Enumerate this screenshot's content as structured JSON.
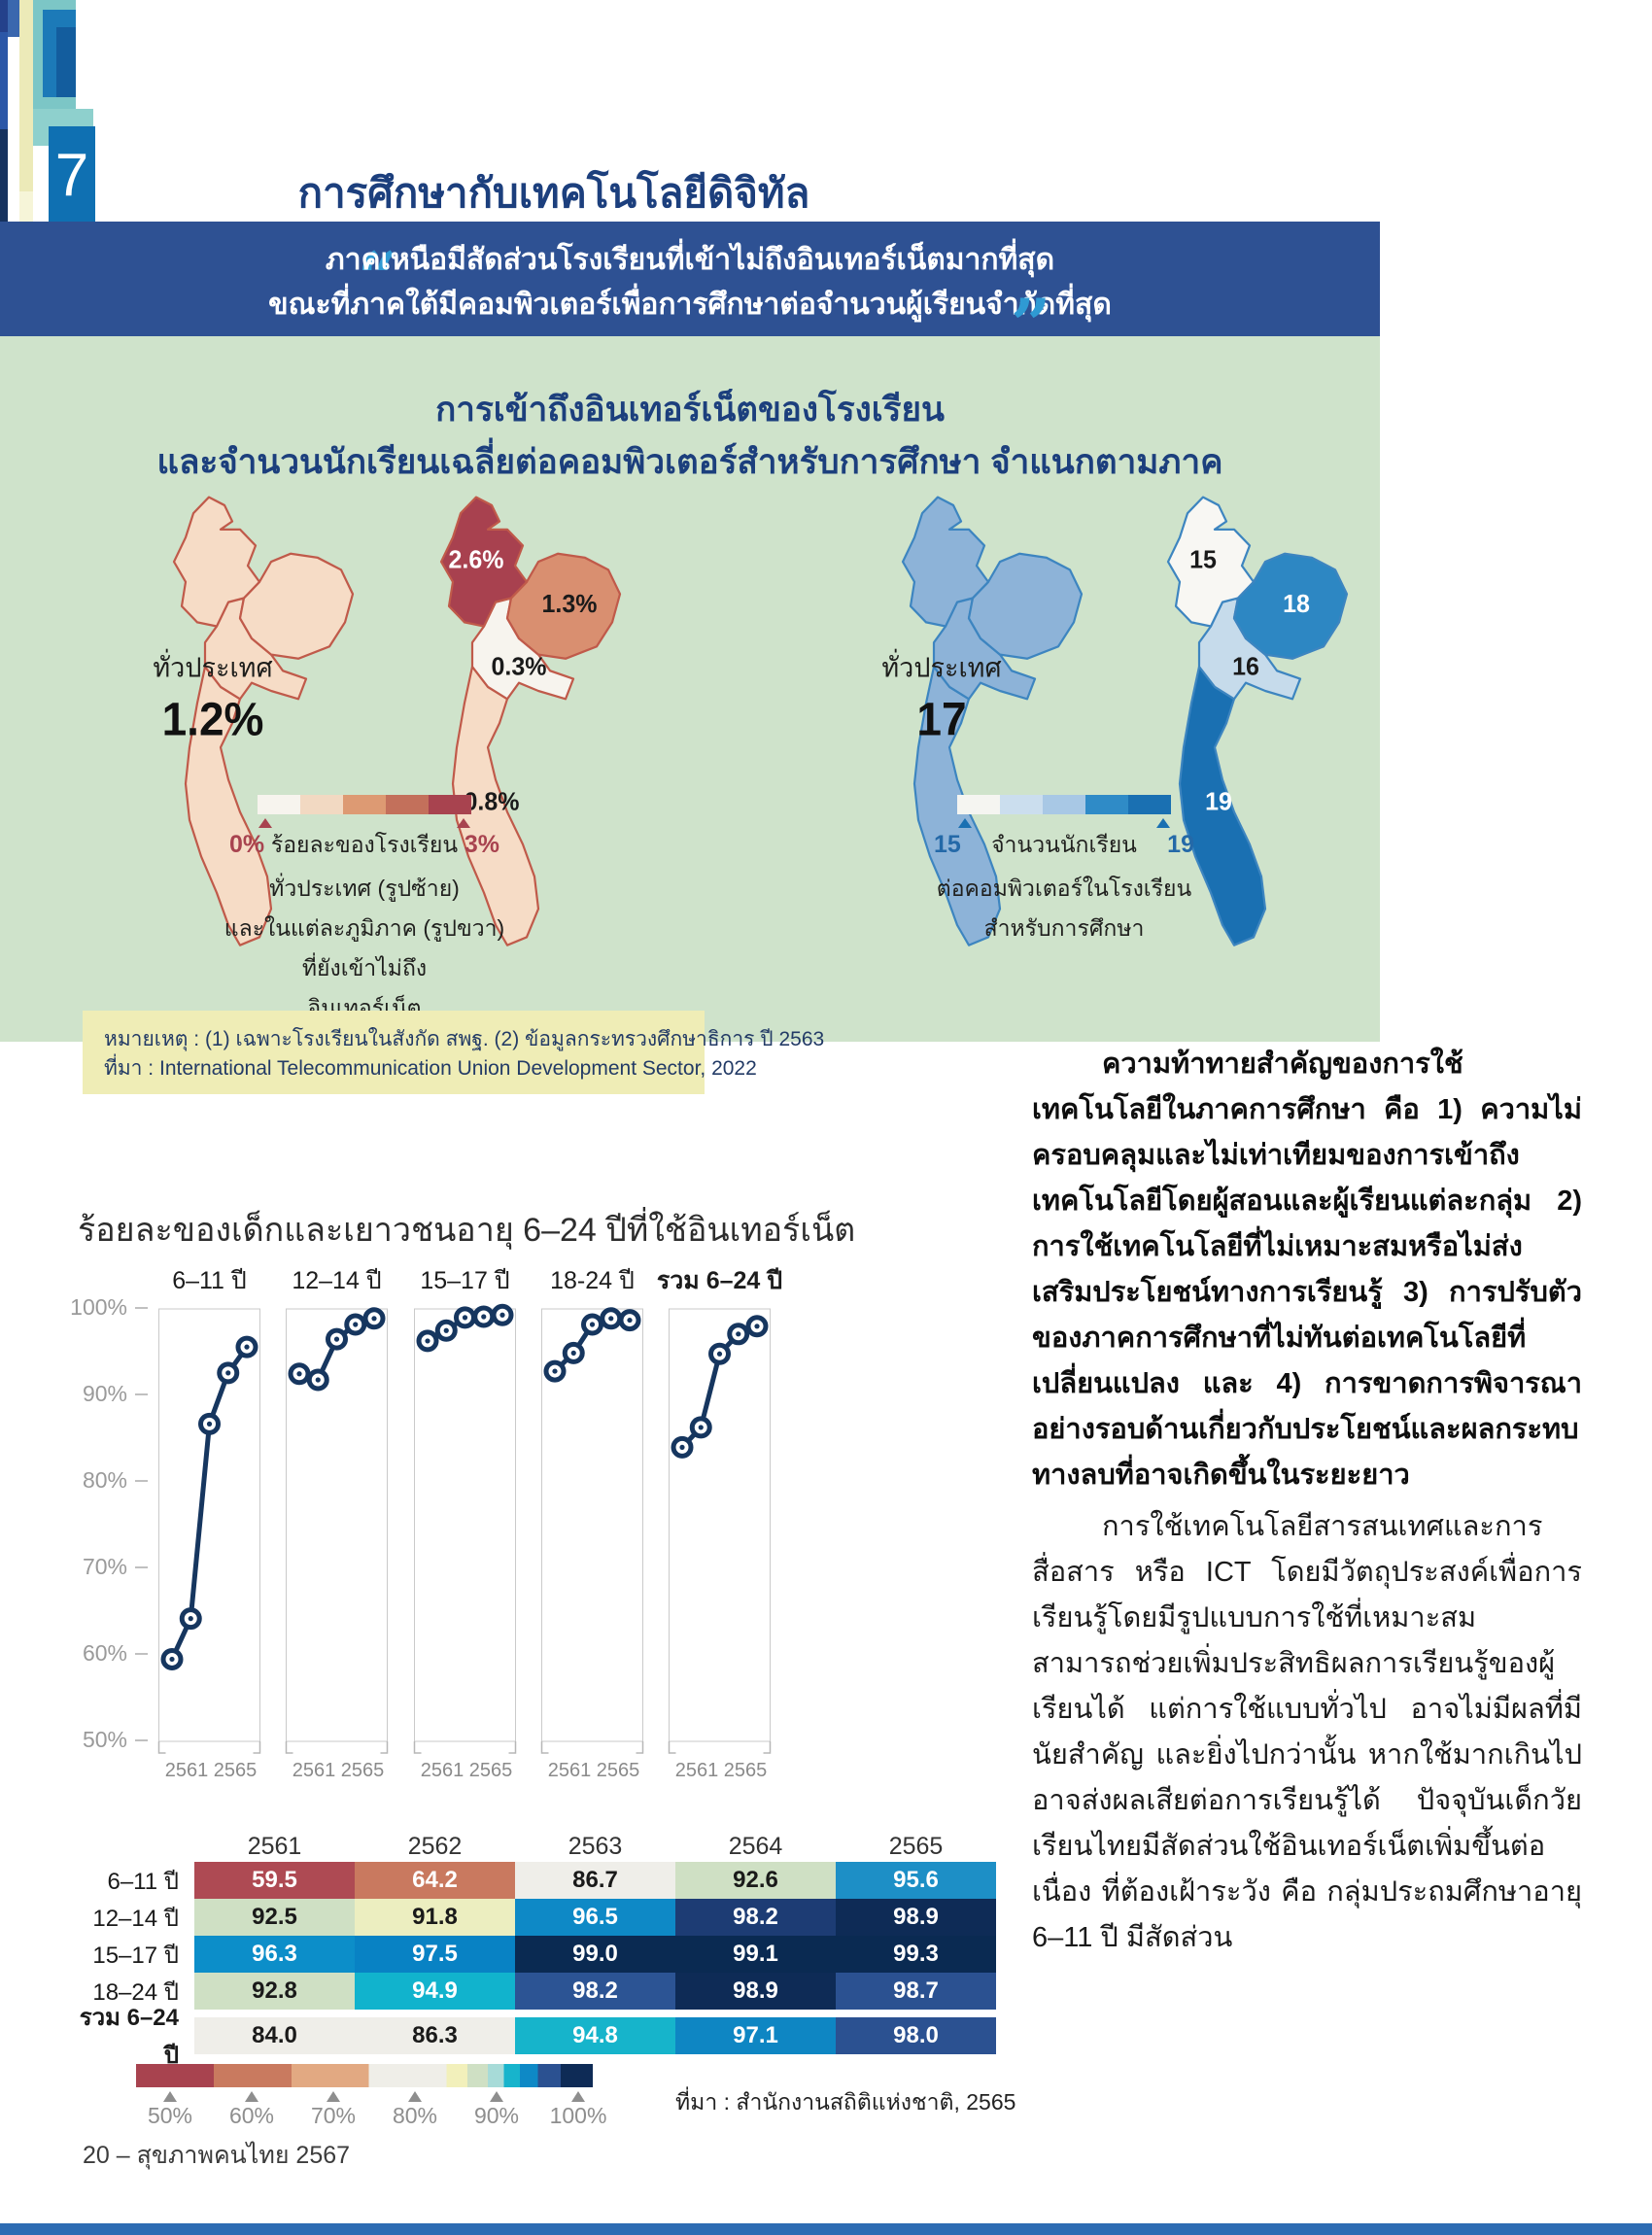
{
  "page": {
    "chapter_number": "7",
    "title": "การศึกษากับเทคโนโลยีดิจิทัล",
    "footer": "20 – สุขภาพคนไทย 2567",
    "accent_navy": "#1c3f7d",
    "banner_blue": "#2e5193",
    "panel_green": "#cfe3cb",
    "note_yellow": "#efedb6",
    "bottom_bar_blue": "#2d6cb3"
  },
  "quote": {
    "open_mark": "“",
    "close_mark": "”",
    "mark_color": "#2f9ad3",
    "line1": "ภาคเหนือมีสัดส่วนโรงเรียนที่เข้าไม่ถึงอินเทอร์เน็ตมากที่สุด",
    "line2": "ขณะที่ภาคใต้มีคอมพิวเตอร์เพื่อการศึกษาต่อจำนวนผู้เรียนจำกัดที่สุด"
  },
  "map_section": {
    "title_line1": "การเข้าถึงอินเทอร์เน็ตของโรงเรียน",
    "title_line2": "และจำนวนนักเรียนเฉลี่ยต่อคอมพิวเตอร์สำหรับการศึกษา จำแนกตามภาค",
    "internet_maps": {
      "national_label": "ทั่วประเทศ",
      "national_value": "1.2%",
      "map_fill": "#f6dcc6",
      "map_stroke": "#c05a4a",
      "region_values": {
        "north": "2.6%",
        "northeast": "1.3%",
        "central": "0.3%",
        "south": "0.8%"
      },
      "region_fills": {
        "north": "#a8414f",
        "northeast": "#d98f70",
        "central": "#f7f4ee",
        "south": "#f6dcc6"
      },
      "region_text_colors": {
        "north": "#ffffff",
        "northeast": "#1a1a1a",
        "central": "#1a1a1a",
        "south": "#1a1a1a"
      },
      "legend": {
        "segments": [
          "#f7f4ee",
          "#f2d9c2",
          "#dd9a73",
          "#c3705b",
          "#a8434f"
        ],
        "min_label": "0%",
        "max_label": "3%",
        "accent": "#a8434f",
        "caption_inline": "ร้อยละของโรงเรียน",
        "caption_lines": [
          "ทั่วประเทศ (รูปซ้าย)",
          "และในแต่ละภูมิภาค (รูปขวา)",
          "ที่ยังเข้าไม่ถึง",
          "อินเทอร์เน็ต"
        ]
      }
    },
    "computer_maps": {
      "national_label": "ทั่วประเทศ",
      "national_value": "17",
      "map_fill": "#8db3d8",
      "map_stroke": "#3d85c0",
      "region_values": {
        "north": "15",
        "northeast": "18",
        "central": "16",
        "south": "19"
      },
      "region_fills": {
        "north": "#f8f7f3",
        "northeast": "#2d87c3",
        "central": "#c6dbeb",
        "south": "#1a70b2"
      },
      "region_text_colors": {
        "north": "#1a1a1a",
        "northeast": "#ffffff",
        "central": "#1a1a1a",
        "south": "#ffffff"
      },
      "legend": {
        "segments": [
          "#f5f5f1",
          "#cbdeee",
          "#a8c8e5",
          "#2f8bc7",
          "#1a70b2"
        ],
        "min_label": "15",
        "max_label": "19",
        "accent": "#1a70b2",
        "caption_inline": "จำนวนนักเรียน",
        "caption_lines": [
          "ต่อคอมพิวเตอร์ในโรงเรียน",
          "สำหรับการศึกษา"
        ]
      }
    }
  },
  "note_box": {
    "line1": "หมายเหตุ : (1) เฉพาะโรงเรียนในสังกัด สพฐ. (2) ข้อมูลกระทรวงศึกษาธิการ ปี 2563",
    "line2": "ที่มา : International Telecommunication Union Development Sector, 2022"
  },
  "chart_data": {
    "type": "line",
    "title": "ร้อยละของเด็กและเยาวชนอายุ 6–24 ปีที่ใช้อินเทอร์เน็ต",
    "x": [
      "2561",
      "2562",
      "2563",
      "2564",
      "2565"
    ],
    "x_edge_labels": [
      "2561",
      "2565"
    ],
    "ylim": [
      50,
      100
    ],
    "ytick_labels": [
      "100%",
      "90%",
      "80%",
      "70%",
      "60%",
      "50%"
    ],
    "grid": false,
    "line_color": "#16365f",
    "series": [
      {
        "name": "6–11 ปี",
        "table_label": "6–11 ปี",
        "values": [
          59.5,
          64.2,
          86.7,
          92.6,
          95.6
        ]
      },
      {
        "name": "12–14 ปี",
        "table_label": "12–14 ปี",
        "values": [
          92.5,
          91.8,
          96.5,
          98.2,
          98.9
        ]
      },
      {
        "name": "15–17 ปี",
        "table_label": "15–17 ปี",
        "values": [
          96.3,
          97.5,
          99.0,
          99.1,
          99.3
        ]
      },
      {
        "name": "18-24 ปี",
        "table_label": "18–24 ปี",
        "values": [
          92.8,
          94.9,
          98.2,
          98.9,
          98.7
        ]
      },
      {
        "name": "รวม 6–24 ปี",
        "table_label": "รวม 6–24 ปี",
        "values": [
          84.0,
          86.3,
          94.8,
          97.1,
          98.0
        ],
        "bold": true
      }
    ],
    "table_cell_styles": [
      [
        {
          "bg": "#ae4a53",
          "fg": "#ffffff"
        },
        {
          "bg": "#c9795f",
          "fg": "#ffffff"
        },
        {
          "bg": "#efeee9",
          "fg": "#1a1a1a"
        },
        {
          "bg": "#cfe0c4",
          "fg": "#1a1a1a"
        },
        {
          "bg": "#1d8fc6",
          "fg": "#ffffff"
        }
      ],
      [
        {
          "bg": "#cfe0c4",
          "fg": "#1a1a1a"
        },
        {
          "bg": "#eceec0",
          "fg": "#1a1a1a"
        },
        {
          "bg": "#0e89c6",
          "fg": "#ffffff"
        },
        {
          "bg": "#1d3c74",
          "fg": "#ffffff"
        },
        {
          "bg": "#0e2b56",
          "fg": "#ffffff"
        }
      ],
      [
        {
          "bg": "#0c8ec9",
          "fg": "#ffffff"
        },
        {
          "bg": "#0882c4",
          "fg": "#ffffff"
        },
        {
          "bg": "#0a2a52",
          "fg": "#ffffff"
        },
        {
          "bg": "#0a2a52",
          "fg": "#ffffff"
        },
        {
          "bg": "#0a2a52",
          "fg": "#ffffff"
        }
      ],
      [
        {
          "bg": "#cfe0c4",
          "fg": "#1a1a1a"
        },
        {
          "bg": "#11b3cd",
          "fg": "#ffffff"
        },
        {
          "bg": "#2c5494",
          "fg": "#ffffff"
        },
        {
          "bg": "#0e2b56",
          "fg": "#ffffff"
        },
        {
          "bg": "#2b5191",
          "fg": "#ffffff"
        }
      ],
      [
        {
          "bg": "#efeee9",
          "fg": "#1a1a1a"
        },
        {
          "bg": "#efeee9",
          "fg": "#1a1a1a"
        },
        {
          "bg": "#16b4cb",
          "fg": "#ffffff"
        },
        {
          "bg": "#0e86c3",
          "fg": "#ffffff"
        },
        {
          "bg": "#2b5191",
          "fg": "#ffffff"
        }
      ]
    ],
    "legend": {
      "tick_labels": [
        "50%",
        "60%",
        "70%",
        "80%",
        "90%",
        "100%"
      ],
      "gradient_segments": [
        {
          "c": "#a8434f",
          "w": 17
        },
        {
          "c": "#c97a5f",
          "w": 17
        },
        {
          "c": "#e2a982",
          "w": 17
        },
        {
          "c": "#efeee8",
          "w": 17
        },
        {
          "c": "#f2f0bb",
          "w": 4.5
        },
        {
          "c": "#cfe0c4",
          "w": 4.5
        },
        {
          "c": "#a7dbd8",
          "w": 3.5
        },
        {
          "c": "#17b4cc",
          "w": 3.5
        },
        {
          "c": "#0e89c6",
          "w": 4
        },
        {
          "c": "#2b5191",
          "w": 5
        },
        {
          "c": "#0e2b56",
          "w": 7
        }
      ]
    },
    "source": "ที่มา : สำนักงานสถิติแห่งชาติ, 2565"
  },
  "article": {
    "bold_paragraph": "ความท้าทายสำคัญของการใช้เทคโนโลยีในภาคการศึกษา คือ 1) ความไม่ครอบคลุมและไม่เท่าเทียมของการเข้าถึงเทคโนโลยีโดยผู้สอนและผู้เรียนแต่ละกลุ่ม 2) การใช้เทคโนโลยีที่ไม่เหมาะสมหรือไม่ส่งเสริมประโยชน์ทางการเรียนรู้ 3) การปรับตัวของภาคการศึกษาที่ไม่ทันต่อเทคโนโลยีที่เปลี่ยนแปลง และ 4) การขาดการพิจารณาอย่างรอบด้านเกี่ยวกับประโยชน์และผลกระทบทางลบที่อาจเกิดขึ้นในระยะยาว",
    "paragraph": "การใช้เทคโนโลยีสารสนเทศและการสื่อสาร หรือ ICT โดยมีวัตถุประสงค์เพื่อการเรียนรู้โดยมีรูปแบบการใช้ที่เหมาะสม สามารถช่วยเพิ่มประสิทธิผลการเรียนรู้ของผู้เรียนได้ แต่การใช้แบบทั่วไป อาจไม่มีผลที่มีนัยสำคัญ และยิ่งไปกว่านั้น หากใช้มากเกินไปอาจส่งผลเสียต่อการเรียนรู้ได้ ปัจจุบันเด็กวัยเรียนไทยมีสัดส่วนใช้อินเทอร์เน็ตเพิ่มขึ้นต่อเนื่อง ที่ต้องเฝ้าระวัง คือ กลุ่มประถมศึกษาอายุ 6–11 ปี มีสัดส่วน"
  }
}
